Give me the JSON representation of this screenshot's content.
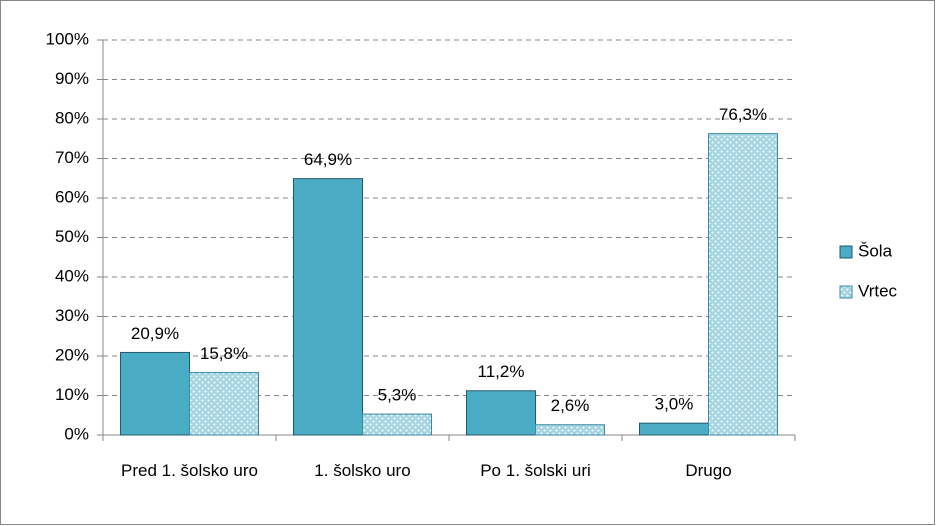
{
  "chart_data": {
    "type": "bar",
    "categories": [
      "Pred 1. šolsko uro",
      "1. šolsko uro",
      "Po 1. šolski uri",
      "Drugo"
    ],
    "series": [
      {
        "name": "Šola",
        "color": "#4bacc6",
        "values": [
          20.9,
          64.9,
          11.2,
          3.0
        ],
        "value_labels": [
          "20,9%",
          "64,9%",
          "11,2%",
          "3,0%"
        ]
      },
      {
        "name": "Vrtec",
        "color": "#a5d5e2",
        "values": [
          15.8,
          5.3,
          2.6,
          76.3
        ],
        "value_labels": [
          "15,8%",
          "5,3%",
          "2,6%",
          "76,3%"
        ]
      }
    ],
    "ylim": [
      0,
      100
    ],
    "yticks": [
      {
        "value": 0,
        "label": "0%"
      },
      {
        "value": 10,
        "label": "10%"
      },
      {
        "value": 20,
        "label": "20%"
      },
      {
        "value": 30,
        "label": "30%"
      },
      {
        "value": 40,
        "label": "40%"
      },
      {
        "value": 50,
        "label": "50%"
      },
      {
        "value": 60,
        "label": "60%"
      },
      {
        "value": 70,
        "label": "70%"
      },
      {
        "value": 80,
        "label": "80%"
      },
      {
        "value": 90,
        "label": "90%"
      },
      {
        "value": 100,
        "label": "100%"
      }
    ],
    "grid": true,
    "legend": "right"
  }
}
